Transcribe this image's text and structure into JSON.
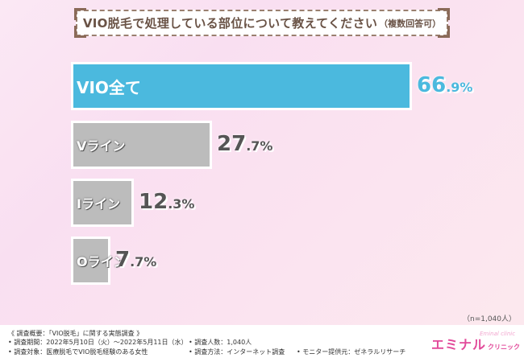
{
  "chart_data": {
    "type": "bar",
    "orientation": "horizontal",
    "title": "VIO脱毛で処理している部位について教えてください",
    "title_suffix": "（複数回答可）",
    "categories": [
      "VIO全て",
      "Vライン",
      "Iライン",
      "Oライン"
    ],
    "values": [
      66.9,
      27.7,
      12.3,
      7.7
    ],
    "value_labels": [
      {
        "int": "66",
        "dec": ".9%"
      },
      {
        "int": "27",
        "dec": ".7%"
      },
      {
        "int": "12",
        "dec": ".3%"
      },
      {
        "int": "7",
        "dec": ".7%"
      }
    ],
    "xlim": [
      0,
      100
    ],
    "n_label": "（n=1,040人）",
    "colors": {
      "highlight": "#4bb9de",
      "default": "#bcbcbc"
    }
  },
  "footer": {
    "line1": "《 調査概要：「VIO脱毛」に関する実態調査 》",
    "period": "• 調査期間：2022年5月10日（火）～2022年5月11日（水）",
    "count": "• 調査人数：1,040人",
    "target": "• 調査対象：医療脱毛でVIO脱毛経験のある女性",
    "method": "• 調査方法：インターネット調査",
    "provider": "• モニター提供元：ゼネラルリサーチ"
  },
  "logo": {
    "main": "エミナル",
    "sub": "クリニック",
    "script": "Eminal clinic"
  }
}
